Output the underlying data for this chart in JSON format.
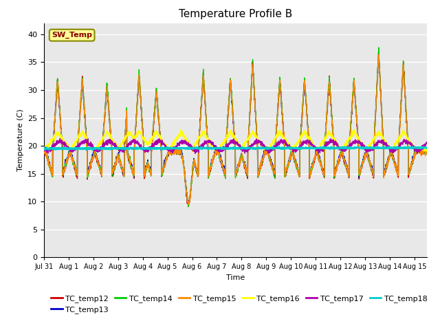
{
  "title": "Temperature Profile B",
  "xlabel": "Time",
  "ylabel": "Temperature (C)",
  "ylim": [
    0,
    42
  ],
  "yticks": [
    0,
    5,
    10,
    15,
    20,
    25,
    30,
    35,
    40
  ],
  "xtick_labels": [
    "Jul 31",
    "Aug 1",
    "Aug 2",
    "Aug 3",
    "Aug 4",
    "Aug 5",
    "Aug 6",
    "Aug 7",
    "Aug 8",
    "Aug 9",
    "Aug 10",
    "Aug 11",
    "Aug 12",
    "Aug 13",
    "Aug 14",
    "Aug 15"
  ],
  "background_color": "#e8e8e8",
  "grid_color": "#ffffff",
  "colors": {
    "TC_temp12": "#cc0000",
    "TC_temp13": "#0000cc",
    "TC_temp14": "#00cc00",
    "TC_temp15": "#ff8800",
    "TC_temp16": "#ffff00",
    "TC_temp17": "#aa00aa",
    "TC_temp18": "#00cccc"
  },
  "sw_temp_box_color": "#ffff99",
  "sw_temp_text_color": "#880000",
  "sw_temp_border_color": "#888800",
  "figsize": [
    6.4,
    4.8
  ],
  "dpi": 100
}
